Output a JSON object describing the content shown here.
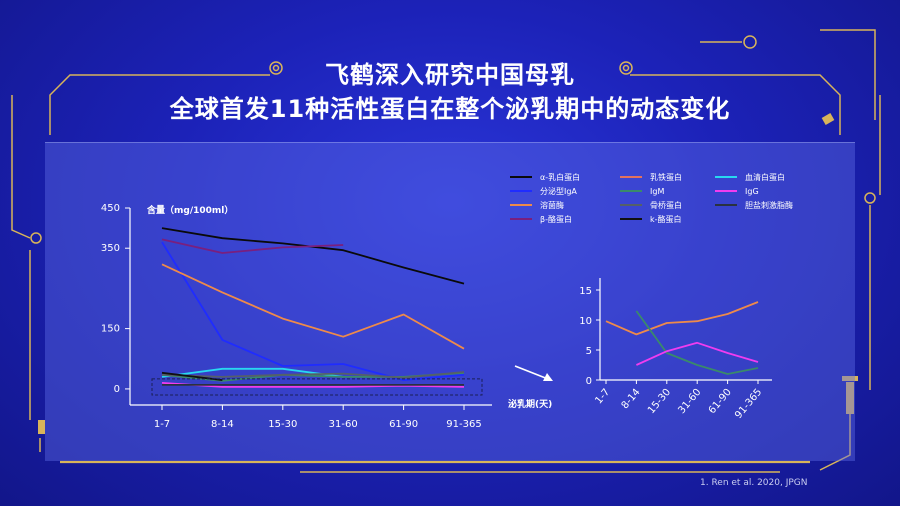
{
  "title": {
    "line1": "飞鹤深入研究中国母乳",
    "line2": "全球首发11种活性蛋白在整个泌乳期中的动态变化"
  },
  "reference": "1. Ren et al. 2020, JPGN",
  "colors": {
    "background": "#1c22b8",
    "gold": "#d8b45a",
    "panel": "#5f6ee6"
  },
  "chart_data": [
    {
      "type": "line",
      "ylabel": "含量（mg/100ml）",
      "xlabel": "泌乳期(天)",
      "categories": [
        "1-7",
        "8-14",
        "15-30",
        "31-60",
        "61-90",
        "91-365"
      ],
      "yticks": [
        "450",
        "350",
        "150",
        "0"
      ],
      "ylim": [
        -40,
        450
      ],
      "series": [
        {
          "name": "α-乳白蛋白",
          "color": "#0a0a0a",
          "values": [
            400,
            375,
            362,
            345,
            302,
            262
          ]
        },
        {
          "name": "乳铁蛋白",
          "color": "#e2725e",
          "values": [
            null,
            null,
            null,
            null,
            null,
            null
          ]
        },
        {
          "name": "血清白蛋白",
          "color": "#28d8f0",
          "values": [
            30,
            50,
            50,
            30,
            null,
            null
          ]
        },
        {
          "name": "分泌型IgA",
          "color": "#1f2cff",
          "values": [
            365,
            122,
            57,
            62,
            22,
            35
          ]
        },
        {
          "name": "IgM",
          "color": "#3a8a6a",
          "values": [
            35,
            20,
            35,
            30,
            30,
            40
          ]
        },
        {
          "name": "IgG",
          "color": "#f03cf0",
          "values": [
            15,
            5,
            5,
            5,
            8,
            5
          ]
        },
        {
          "name": "溶菌酶",
          "color": "#ee8a4a",
          "values": [
            310,
            240,
            175,
            130,
            185,
            100
          ]
        },
        {
          "name": "骨桥蛋白",
          "color": "#556068",
          "values": [
            35,
            30,
            35,
            38,
            28,
            42
          ]
        },
        {
          "name": "胆盐刺激脂酶",
          "color": "#2a3240",
          "values": [
            10,
            10,
            10,
            10,
            10,
            10
          ]
        },
        {
          "name": "β-酪蛋白",
          "color": "#7a1f7e",
          "values": [
            372,
            338,
            352,
            358,
            null,
            null
          ]
        },
        {
          "name": "k-酪蛋白",
          "color": "#101010",
          "values": [
            40,
            22,
            null,
            null,
            null,
            null
          ]
        }
      ],
      "legend": "top-right"
    },
    {
      "type": "line",
      "categories": [
        "1-7",
        "8-14",
        "15-30",
        "31-60",
        "61-90",
        "91-365"
      ],
      "yticks": [
        "15",
        "10",
        "5",
        "0"
      ],
      "ylim": [
        0,
        17
      ],
      "series": [
        {
          "name": "溶菌酶",
          "color": "#ee8a4a",
          "values": [
            9.8,
            7.6,
            9.5,
            9.8,
            11,
            13
          ]
        },
        {
          "name": "IgM",
          "color": "#3a8a6a",
          "values": [
            null,
            11.5,
            4.5,
            2.5,
            1,
            2
          ]
        },
        {
          "name": "IgG",
          "color": "#f03cf0",
          "values": [
            null,
            2.5,
            4.8,
            6.2,
            4.5,
            3
          ]
        }
      ]
    }
  ]
}
